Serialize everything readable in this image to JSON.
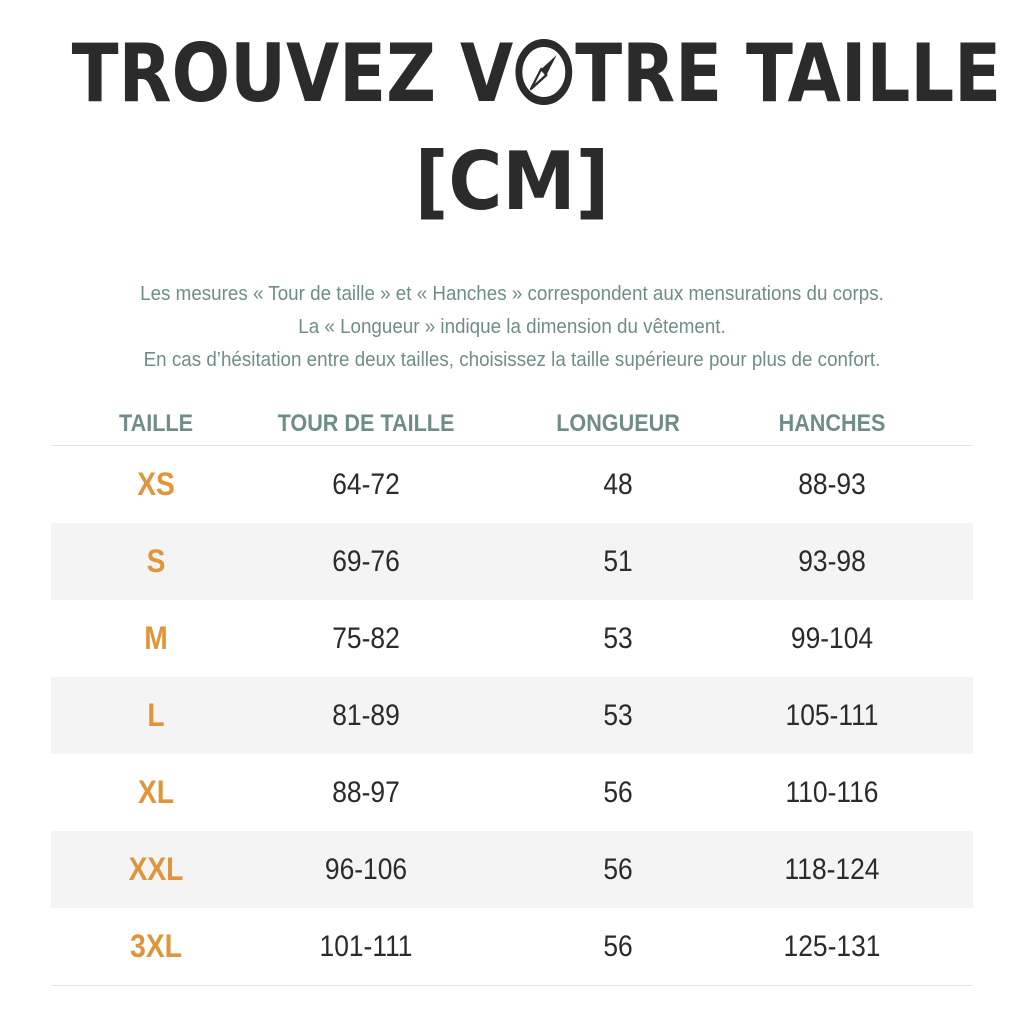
{
  "title": {
    "line1_before": "TROUVEZ V",
    "line1_after": "TRE TAILLE",
    "line2": "[CM]",
    "icon": "compass-icon"
  },
  "intro": {
    "line1": "Les mesures « Tour de taille » et « Hanches » correspondent aux mensurations du corps.",
    "line2": "La « Longueur » indique la dimension du vêtement.",
    "line3": "En cas d’hésitation entre deux tailles, choisissez la taille supérieure pour plus de confort."
  },
  "table": {
    "headers": [
      "TAILLE",
      "TOUR DE TAILLE",
      "LONGUEUR",
      "HANCHES"
    ],
    "rows": [
      [
        "XS",
        "64-72",
        "48",
        "88-93"
      ],
      [
        "S",
        "69-76",
        "51",
        "93-98"
      ],
      [
        "M",
        "75-82",
        "53",
        "99-104"
      ],
      [
        "L",
        "81-89",
        "53",
        "105-111"
      ],
      [
        "XL",
        "88-97",
        "56",
        "110-116"
      ],
      [
        "XXL",
        "96-106",
        "56",
        "118-124"
      ],
      [
        "3XL",
        "101-111",
        "56",
        "125-131"
      ]
    ]
  },
  "colors": {
    "title": "#2b2b2b",
    "accent_teal": "#6f8d88",
    "size_orange": "#e0953a",
    "row_shade": "#f4f4f4"
  }
}
